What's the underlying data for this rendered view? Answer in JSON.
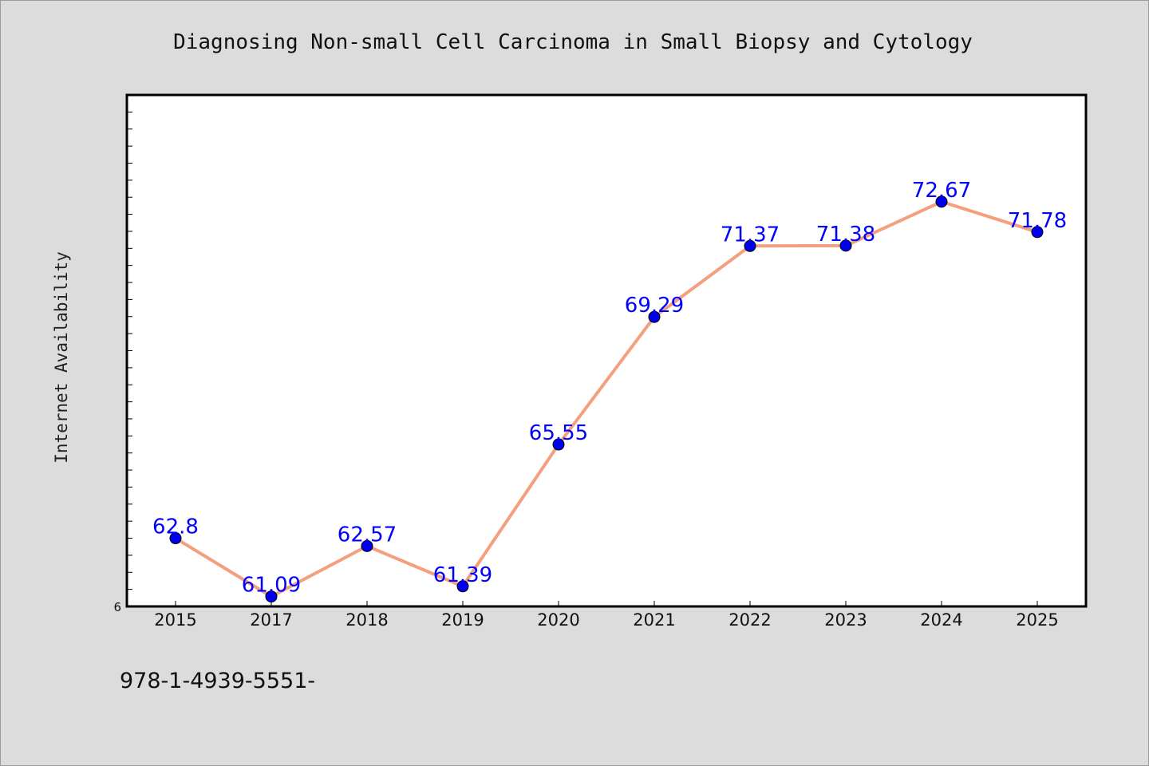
{
  "chart_data": {
    "type": "line",
    "title": "Diagnosing Non-small Cell Carcinoma in Small Biopsy and Cytology",
    "xlabel": "",
    "ylabel": "Internet Availability",
    "categories": [
      "2015",
      "2017",
      "2018",
      "2019",
      "2020",
      "2021",
      "2022",
      "2023",
      "2024",
      "2025"
    ],
    "values": [
      62.8,
      61.09,
      62.57,
      61.39,
      65.55,
      69.29,
      71.37,
      71.38,
      72.67,
      71.78
    ],
    "data_labels": [
      "62.8",
      "61.09",
      "62.57",
      "61.39",
      "65.55",
      "69.29",
      "71.37",
      "71.38",
      "72.67",
      "71.78"
    ],
    "ylim": [
      60.8,
      75.8
    ],
    "y_tick_labels": [
      "6"
    ],
    "grid": false,
    "legend": "none",
    "colors": {
      "line": "#f4a07f",
      "marker": "#0000ee",
      "data_label": "#0000ff",
      "background": "#dcdcdc",
      "plot_background": "#ffffff"
    }
  },
  "footer": {
    "code": "978-1-4939-5551-"
  }
}
